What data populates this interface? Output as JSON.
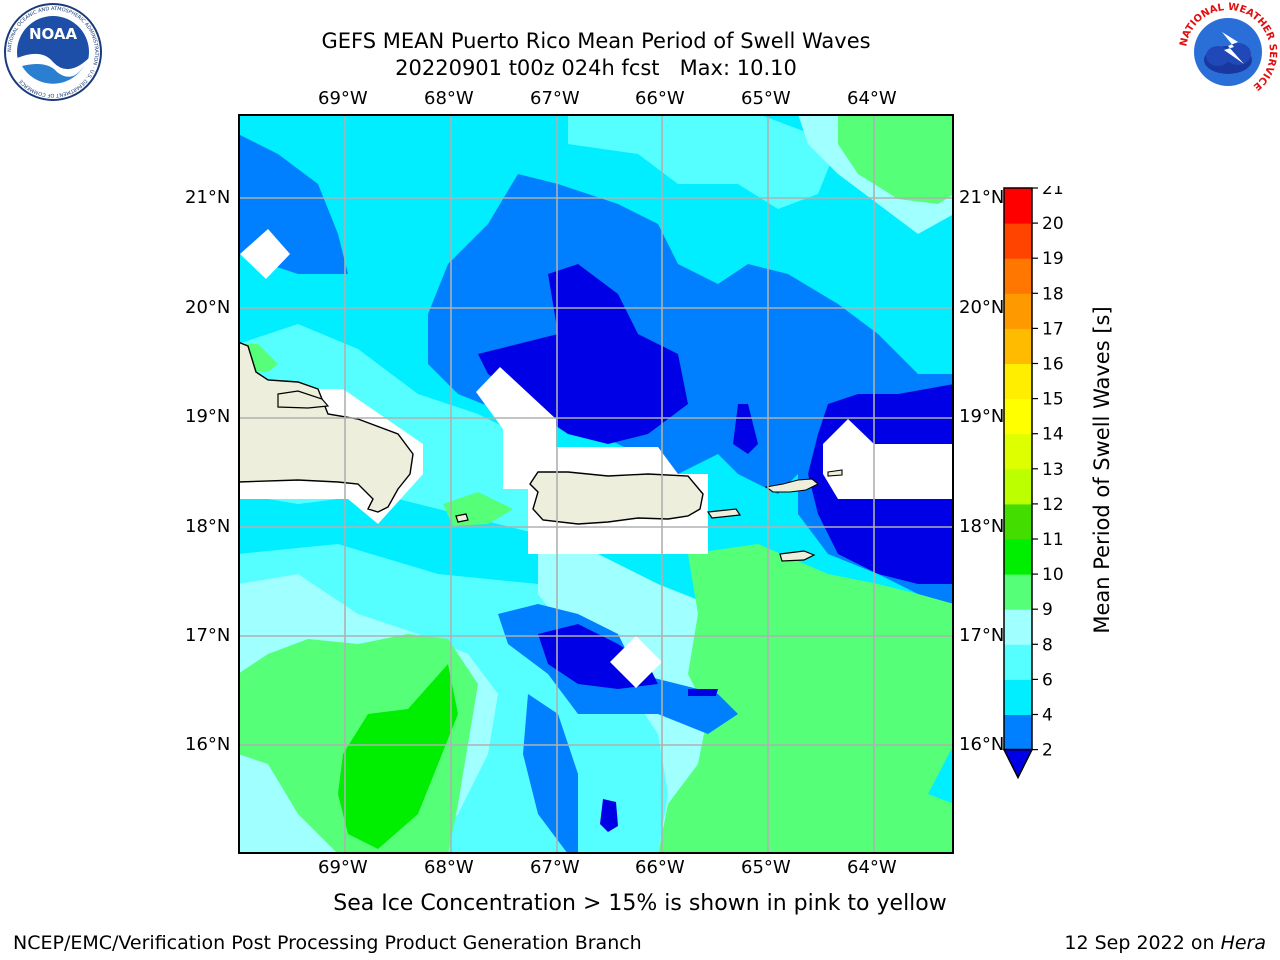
{
  "title": {
    "line1": "GEFS MEAN Puerto Rico Mean Period of Swell Waves",
    "line2": "20220901 t00z 024h fcst   Max: 10.10"
  },
  "logos": {
    "left": {
      "name": "noaa-logo",
      "text": "NOAA",
      "ring": "NATIONAL OCEANIC AND ATMOSPHERIC ADMINISTRATION · U.S. DEPARTMENT OF COMMERCE"
    },
    "right": {
      "name": "nws-logo",
      "ring": "NATIONAL WEATHER SERVICE"
    }
  },
  "map": {
    "lon_labels": [
      "69°W",
      "68°W",
      "67°W",
      "66°W",
      "65°W",
      "64°W"
    ],
    "lat_labels": [
      "21°N",
      "20°N",
      "19°N",
      "18°N",
      "17°N",
      "16°N"
    ],
    "lon_range": [
      -70.0,
      -63.3
    ],
    "lat_range": [
      15.0,
      21.75
    ],
    "colors": {
      "land": "#eeeedd",
      "gridline": "#b0b0b0",
      "c_2_4": "#0000e6",
      "c_4_6": "#0080ff",
      "c_6_8": "#00eeff",
      "c_8_9": "#55ffff",
      "c_9_10": "#a0ffff",
      "c_10_11": "#55ff77",
      "c_11_12": "#00ee00"
    }
  },
  "colorbar": {
    "label": "Mean Period of Swell Waves [s]",
    "ticks": [
      "2",
      "4",
      "6",
      "8",
      "9",
      "10",
      "11",
      "12",
      "13",
      "14",
      "15",
      "16",
      "17",
      "18",
      "19",
      "20",
      "21"
    ],
    "colors": [
      "#0080ff",
      "#00eeff",
      "#55ffff",
      "#a0ffff",
      "#55ff77",
      "#00ee00",
      "#44dd00",
      "#bbff00",
      "#ddff00",
      "#ffff00",
      "#ffee00",
      "#ffbb00",
      "#ff9900",
      "#ff7700",
      "#ff4400",
      "#ff0000"
    ],
    "extend_color": "#0000e6"
  },
  "caption": "Sea Ice Concentration > 15% is shown in pink to yellow",
  "footer": {
    "left": "NCEP/EMC/Verification Post Processing Product Generation Branch",
    "right_date": "12 Sep 2022 on ",
    "right_host": "Hera"
  }
}
